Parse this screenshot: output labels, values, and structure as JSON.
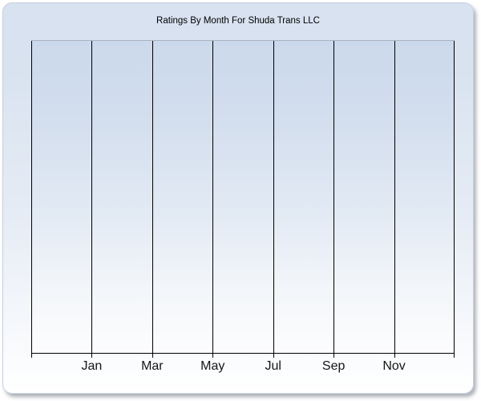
{
  "chart": {
    "title": "Ratings By Month For Shuda Trans LLC",
    "x_axis": {
      "labels": [
        "Jan",
        "Mar",
        "May",
        "Jul",
        "Sep",
        "Nov"
      ]
    }
  },
  "colors": {
    "card_gradient_top": "#d8e2f0",
    "card_gradient_bottom": "#ffffff",
    "card_border": "#c6d0e0",
    "plot_gradient_top": "#cbd9ec",
    "plot_gradient_bottom": "#fdfdfe",
    "plot_top_border": "#a9b1bc",
    "gridline": "#000000",
    "axis_line": "#000000",
    "label_text": "#151515"
  },
  "chart_data": {
    "type": "line",
    "title": "Ratings By Month For Shuda Trans LLC",
    "x_tick_labels": [
      "Jan",
      "Mar",
      "May",
      "Jul",
      "Sep",
      "Nov"
    ],
    "x_gridline_count": 8,
    "series": [],
    "y_axis_labels_visible": false,
    "legend_visible": false,
    "grid": "vertical-only",
    "notes": "Plot area is empty: no data points, lines, or bars are rendered and no y-axis scale is shown."
  }
}
